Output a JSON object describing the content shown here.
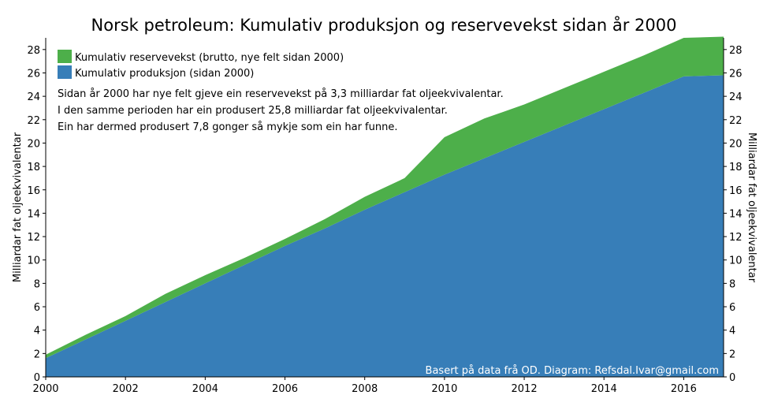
{
  "chart_data": {
    "type": "area",
    "stacked": true,
    "title": "Norsk petroleum: Kumulativ produksjon og reservevekst sidan år 2000",
    "ylabel_left": "Milliardar fat oljeekvivalentar",
    "ylabel_right": "Milliardar fat oljeekvivalentar",
    "xlim": [
      2000,
      2017
    ],
    "ylim": [
      0,
      29
    ],
    "x_ticks": [
      2000,
      2002,
      2004,
      2006,
      2008,
      2010,
      2012,
      2014,
      2016
    ],
    "y_ticks": [
      0,
      2,
      4,
      6,
      8,
      10,
      12,
      14,
      16,
      18,
      20,
      22,
      24,
      26,
      28
    ],
    "x": [
      2000,
      2001,
      2002,
      2003,
      2004,
      2005,
      2006,
      2007,
      2008,
      2009,
      2010,
      2011,
      2012,
      2013,
      2014,
      2015,
      2016,
      2017
    ],
    "series": [
      {
        "name": "Kumulativ produksjon (sidan 2000)",
        "color": "#377eb8",
        "values": [
          1.6,
          3.2,
          4.8,
          6.4,
          8.0,
          9.6,
          11.2,
          12.7,
          14.3,
          15.8,
          17.3,
          18.7,
          20.1,
          21.5,
          22.9,
          24.3,
          25.7,
          25.8
        ]
      },
      {
        "name": "Kumulativ reservevekst (brutto, nye felt sidan 2000)",
        "color": "#4daf4a",
        "values": [
          0.3,
          0.4,
          0.4,
          0.7,
          0.7,
          0.6,
          0.6,
          0.8,
          1.1,
          1.2,
          3.2,
          3.4,
          3.2,
          3.2,
          3.2,
          3.2,
          3.3,
          3.3
        ]
      }
    ],
    "legend": {
      "position": "top-left",
      "entries": [
        {
          "label": "Kumulativ reservevekst (brutto, nye felt sidan 2000)",
          "color": "#4daf4a"
        },
        {
          "label": "Kumulativ produksjon (sidan 2000)",
          "color": "#377eb8"
        }
      ]
    },
    "annotations": [
      "Sidan år 2000 har nye felt gjeve ein reservevekst på 3,3 milliardar fat oljeekvivalentar.",
      "I den samme perioden har ein produsert 25,8 milliardar fat oljeekvivalentar.",
      "Ein har dermed produsert 7,8 gonger så mykje som ein har funne."
    ],
    "credit": "Basert på data frå OD. Diagram: Refsdal.Ivar@gmail.com"
  }
}
